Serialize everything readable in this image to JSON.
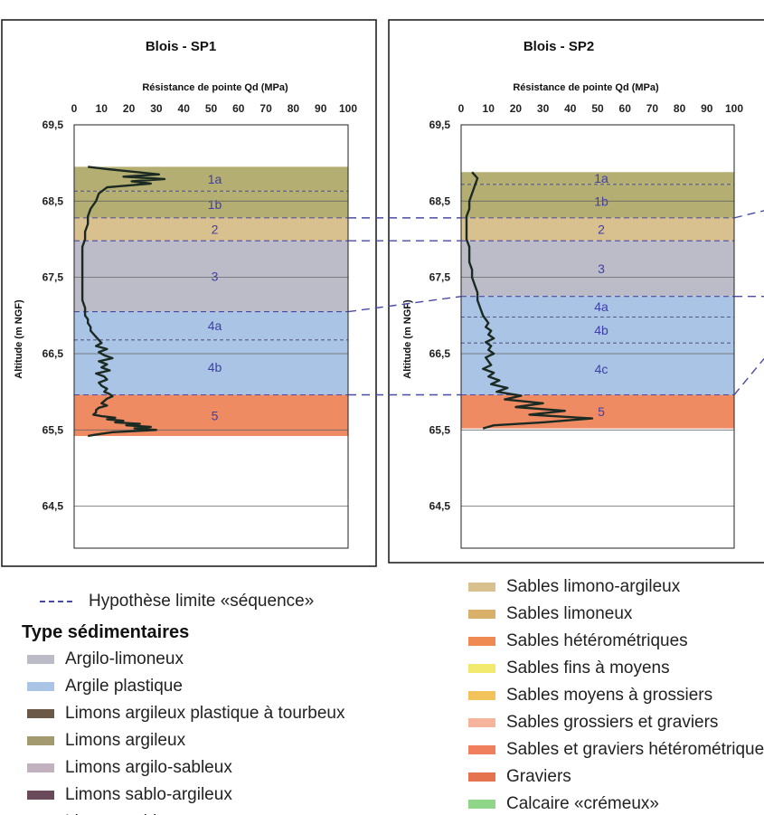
{
  "chart_data": [
    {
      "type": "line",
      "title": "Blois - SP1",
      "xlabel": "Résistance de pointe Qd (MPa)",
      "ylabel": "Altitude (m NGF)",
      "xlim": [
        0,
        100
      ],
      "ylim": [
        63.95,
        69.5
      ],
      "x_ticks": [
        "0",
        "10",
        "20",
        "30",
        "40",
        "50",
        "60",
        "70",
        "80",
        "90",
        "100"
      ],
      "y_ticks": [
        "69,5",
        "68,5",
        "67,5",
        "66,5",
        "65,5",
        "64,5"
      ],
      "layers": [
        {
          "label": "1a",
          "top": 68.95,
          "bottom": 68.63,
          "color": "#b5ae72"
        },
        {
          "label": "1b",
          "top": 68.63,
          "bottom": 68.28,
          "color": "#b5ae72"
        },
        {
          "label": "2",
          "top": 68.28,
          "bottom": 67.98,
          "color": "#d9c18f"
        },
        {
          "label": "3",
          "top": 67.98,
          "bottom": 67.05,
          "color": "#bcbbc8"
        },
        {
          "label": "4a",
          "top": 67.05,
          "bottom": 66.68,
          "color": "#a9c4e4"
        },
        {
          "label": "4b",
          "top": 66.68,
          "bottom": 65.96,
          "color": "#a9c4e4"
        },
        {
          "label": "5",
          "top": 65.96,
          "bottom": 65.42,
          "color": "#ef8b63"
        }
      ],
      "series": [
        {
          "x": [
            5,
            12,
            23,
            31,
            18,
            33,
            21,
            28,
            12,
            9,
            8,
            6,
            5,
            5,
            4,
            4,
            3,
            3,
            3,
            3,
            3,
            3,
            3,
            3,
            4,
            4,
            4,
            5,
            5,
            6,
            6,
            7,
            8,
            9,
            10,
            8,
            12,
            9,
            11,
            14,
            9,
            12,
            10,
            13,
            8,
            11,
            12,
            9,
            10,
            12,
            11,
            13,
            14,
            12,
            11,
            10,
            12,
            9,
            8,
            8,
            7,
            10,
            15,
            12,
            18,
            15,
            24,
            19,
            28,
            22,
            30,
            14,
            8,
            5
          ],
          "y": [
            68.95,
            68.92,
            68.88,
            68.85,
            68.82,
            68.79,
            68.76,
            68.73,
            68.68,
            68.6,
            68.5,
            68.4,
            68.3,
            68.2,
            68.1,
            68,
            67.9,
            67.8,
            67.7,
            67.6,
            67.5,
            67.4,
            67.3,
            67.2,
            67.1,
            67.05,
            67,
            66.95,
            66.9,
            66.85,
            66.8,
            66.76,
            66.72,
            66.68,
            66.64,
            66.6,
            66.56,
            66.52,
            66.48,
            66.44,
            66.4,
            66.36,
            66.32,
            66.28,
            66.24,
            66.2,
            66.16,
            66.12,
            66.08,
            66.04,
            66,
            65.97,
            65.94,
            65.91,
            65.88,
            65.85,
            65.82,
            65.79,
            65.76,
            65.73,
            65.7,
            65.68,
            65.66,
            65.64,
            65.62,
            65.6,
            65.58,
            65.56,
            65.54,
            65.52,
            65.5,
            65.47,
            65.44,
            65.42
          ]
        }
      ]
    },
    {
      "type": "line",
      "title": "Blois - SP2",
      "xlabel": "Résistance de pointe Qd (MPa)",
      "ylabel": "Altitude (m NGF)",
      "xlim": [
        0,
        100
      ],
      "ylim": [
        63.95,
        69.5
      ],
      "x_ticks": [
        "0",
        "10",
        "20",
        "30",
        "40",
        "50",
        "60",
        "70",
        "80",
        "90",
        "100"
      ],
      "y_ticks": [
        "69,5",
        "68,5",
        "67,5",
        "66,5",
        "65,5",
        "64,5"
      ],
      "layers": [
        {
          "label": "1a",
          "top": 68.88,
          "bottom": 68.72,
          "color": "#b5ae72"
        },
        {
          "label": "1b",
          "top": 68.72,
          "bottom": 68.28,
          "color": "#b5ae72"
        },
        {
          "label": "2",
          "top": 68.28,
          "bottom": 67.98,
          "color": "#d9c18f"
        },
        {
          "label": "3",
          "top": 67.98,
          "bottom": 67.25,
          "color": "#bcbbc8"
        },
        {
          "label": "4a",
          "top": 67.25,
          "bottom": 66.98,
          "color": "#a9c4e4"
        },
        {
          "label": "4b",
          "top": 66.98,
          "bottom": 66.64,
          "color": "#a9c4e4"
        },
        {
          "label": "4c",
          "top": 66.64,
          "bottom": 65.96,
          "color": "#a9c4e4"
        },
        {
          "label": "5",
          "top": 65.96,
          "bottom": 65.52,
          "color": "#ef8b63"
        }
      ],
      "series": [
        {
          "x": [
            4,
            6,
            5,
            4,
            3,
            3,
            2,
            2,
            2,
            2,
            3,
            3,
            3,
            4,
            4,
            5,
            6,
            6,
            7,
            8,
            9,
            10,
            9,
            11,
            10,
            12,
            9,
            11,
            10,
            12,
            9,
            10,
            11,
            8,
            12,
            10,
            14,
            11,
            17,
            13,
            22,
            16,
            30,
            20,
            38,
            25,
            48,
            30,
            12,
            8
          ],
          "y": [
            68.88,
            68.8,
            68.7,
            68.6,
            68.5,
            68.4,
            68.3,
            68.2,
            68.1,
            68,
            67.9,
            67.8,
            67.7,
            67.6,
            67.5,
            67.4,
            67.3,
            67.2,
            67.1,
            67,
            66.95,
            66.9,
            66.85,
            66.8,
            66.75,
            66.7,
            66.65,
            66.6,
            66.55,
            66.5,
            66.45,
            66.4,
            66.35,
            66.3,
            66.25,
            66.2,
            66.15,
            66.1,
            66.05,
            66,
            65.95,
            65.9,
            65.85,
            65.8,
            65.75,
            65.7,
            65.65,
            65.6,
            65.56,
            65.52
          ]
        }
      ]
    }
  ],
  "legend": {
    "boundary": "Hypothèse limite «séquence»",
    "heading": "Type sédimentaires",
    "left_items": [
      {
        "label": "Argilo-limoneux",
        "color": "#bcbbc8"
      },
      {
        "label": "Argile plastique",
        "color": "#a9c4e4"
      },
      {
        "label": "Limons argileux plastique à tourbeux",
        "color": "#6b5846"
      },
      {
        "label": "Limons argileux",
        "color": "#a49a70"
      },
      {
        "label": "Limons argilo-sableux",
        "color": "#c2b2bf"
      },
      {
        "label": "Limons sablo-argileux",
        "color": "#6a4a5a"
      },
      {
        "label": "Limons sableux",
        "color": "#8a7c7c"
      }
    ],
    "right_items": [
      {
        "label": "Sables limono-argileux",
        "color": "#d9c18f"
      },
      {
        "label": "Sables limoneux",
        "color": "#d8b06a"
      },
      {
        "label": "Sables hétérométriques",
        "color": "#ef8a52"
      },
      {
        "label": "Sables fins à moyens",
        "color": "#f2ea6e"
      },
      {
        "label": "Sables moyens à grossiers",
        "color": "#f3c35b"
      },
      {
        "label": "Sables grossiers et graviers",
        "color": "#f6b49c"
      },
      {
        "label": "Sables et graviers hétérométriques",
        "color": "#ef7f5d"
      },
      {
        "label": "Graviers",
        "color": "#e5744e"
      },
      {
        "label": "Calcaire «crémeux»",
        "color": "#8fd688"
      }
    ]
  }
}
